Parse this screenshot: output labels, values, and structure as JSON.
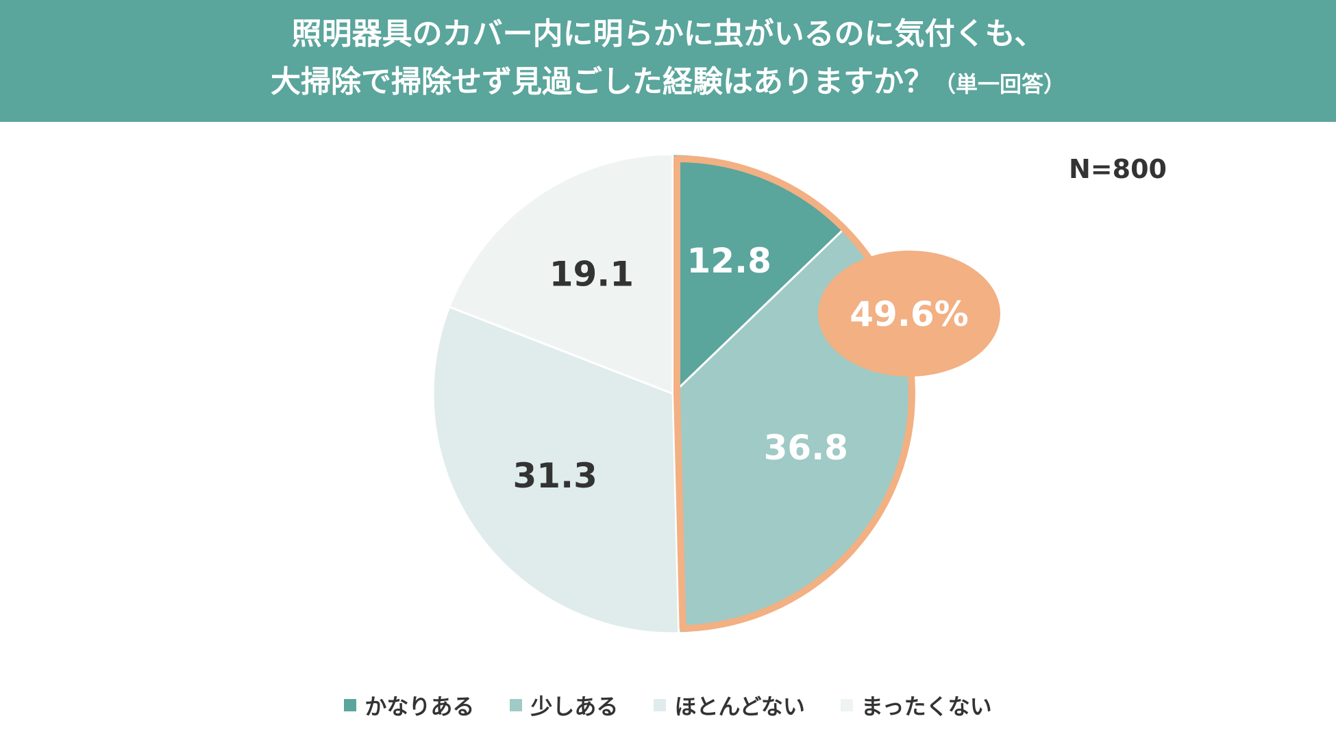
{
  "title": {
    "line1": "照明器具のカバー内に明らかに虫がいるのに気付くも、",
    "line2": "大掃除で掃除せず見過ごした経験はありますか？",
    "note": "（単一回答）"
  },
  "sample_size": "N=800",
  "chart_data": {
    "type": "pie",
    "title": "照明器具のカバー内に明らかに虫がいるのに気付くも、大掃除で掃除せず見過ごした経験はありますか？（単一回答）",
    "unit": "%",
    "categories": [
      "かなりある",
      "少しある",
      "ほとんどない",
      "まったくない"
    ],
    "values": [
      12.8,
      36.8,
      31.3,
      19.1
    ],
    "value_labels": [
      "12.8",
      "36.8",
      "31.3",
      "19.1"
    ],
    "colors": [
      "#5aa59c",
      "#9fcac6",
      "#dfeceb",
      "#eff4f3"
    ],
    "label_colors": [
      "#ffffff",
      "#ffffff",
      "#333333",
      "#333333"
    ],
    "start": "12 o'clock",
    "direction": "clockwise",
    "highlight": {
      "categories": [
        "かなりある",
        "少しある"
      ],
      "label": "49.6%",
      "outline_color": "#f2b083",
      "bubble_color": "#f2b083"
    },
    "legend_position": "bottom",
    "sample_size": "N=800"
  }
}
